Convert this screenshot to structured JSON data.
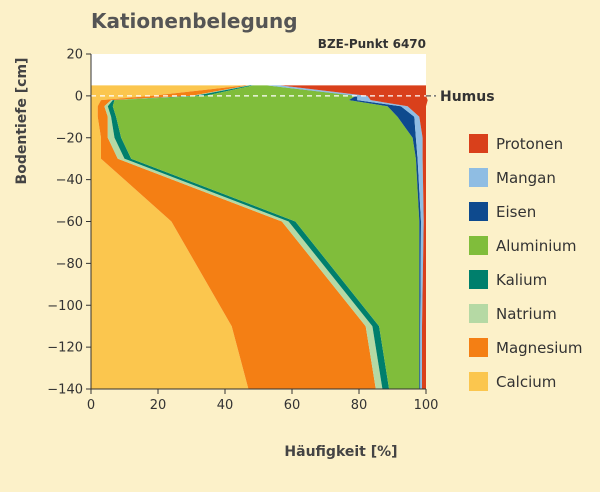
{
  "chart_data": {
    "type": "area",
    "orientation": "horizontal-stacked-profile",
    "title": "Kationenbelegung",
    "subtitle": "BZE-Punkt 6470",
    "xlabel": "Häufigkeit [%]",
    "ylabel": "Bodentiefe [cm]",
    "xlim": [
      0,
      100
    ],
    "ylim": [
      -140,
      20
    ],
    "xticks": [
      "0",
      "20",
      "40",
      "60",
      "80",
      "100"
    ],
    "yticks": [
      "20",
      "0",
      "−20",
      "−40",
      "−60",
      "−80",
      "−100",
      "−120",
      "−140"
    ],
    "annotation": {
      "label": "Humus",
      "depth": 0
    },
    "data_top_depth": 5,
    "depths": [
      5,
      0,
      -2,
      -5,
      -10,
      -20,
      -30,
      -60,
      -110,
      -140
    ],
    "series": [
      {
        "name": "Calcium",
        "color": "#fbc64e",
        "values": [
          46,
          18,
          3,
          2,
          2,
          3,
          3,
          24,
          42,
          47
        ]
      },
      {
        "name": "Magnesium",
        "color": "#f47f14",
        "values": [
          1,
          12,
          3,
          2,
          3,
          2,
          5,
          33,
          40,
          38
        ]
      },
      {
        "name": "Natrium",
        "color": "#b5d9a4",
        "values": [
          0.5,
          1,
          0.5,
          1,
          1,
          2,
          2,
          2,
          2,
          2
        ]
      },
      {
        "name": "Kalium",
        "color": "#007f6c",
        "values": [
          1,
          3,
          0.5,
          1.5,
          1.5,
          2,
          2,
          2,
          2,
          2
        ]
      },
      {
        "name": "Aluminium",
        "color": "#80bd3b",
        "values": [
          4,
          45,
          70,
          82,
          84,
          87,
          85,
          37,
          12,
          9
        ]
      },
      {
        "name": "Eisen",
        "color": "#0e4a8e",
        "values": [
          0,
          0.5,
          2.5,
          4,
          5,
          1,
          0.5,
          0.5,
          0.3,
          0.3
        ]
      },
      {
        "name": "Mangan",
        "color": "#8fbde3",
        "values": [
          4,
          3,
          4,
          2,
          1.5,
          2,
          1.5,
          0.8,
          0.5,
          0.5
        ]
      },
      {
        "name": "Protonen",
        "color": "#d9401b",
        "values": [
          43.5,
          17.5,
          17,
          5.5,
          2,
          1,
          1,
          0.7,
          1.2,
          1.2
        ]
      }
    ],
    "legend": {
      "placement": "right",
      "order": [
        "Protonen",
        "Mangan",
        "Eisen",
        "Aluminium",
        "Kalium",
        "Natrium",
        "Magnesium",
        "Calcium"
      ]
    },
    "grid": false
  }
}
